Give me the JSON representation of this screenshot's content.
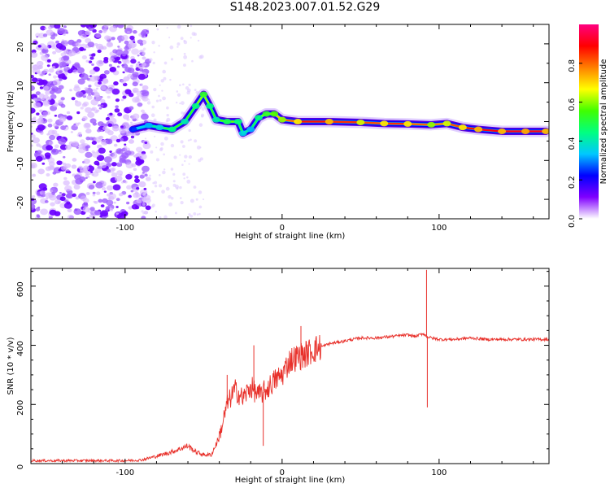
{
  "page": {
    "title": "S148.2023.007.01.52.G29"
  },
  "chart_data": [
    {
      "type": "heatmap",
      "title": "S148.2023.007.01.52.G29",
      "xlabel": "Height of straight line (km)",
      "ylabel": "Frequency (Hz)",
      "xlim": [
        -160,
        170
      ],
      "ylim": [
        -25,
        25
      ],
      "x_ticks": [
        -100,
        0,
        100
      ],
      "y_ticks": [
        -20,
        -10,
        0,
        10,
        20
      ],
      "colorbar": {
        "label": "Normalized spectral amplitude",
        "range": [
          0,
          1
        ],
        "ticks": [
          "0.0",
          "0.2",
          "0.4",
          "0.6",
          "0.8"
        ],
        "colors": [
          "#ffffff",
          "#8000ff",
          "#0000ff",
          "#00c8ff",
          "#00ff80",
          "#40ff00",
          "#ffff00",
          "#ff8000",
          "#ff0000",
          "#ff0080"
        ]
      },
      "ridge": [
        {
          "x": -95,
          "y": -2,
          "a": 0.3
        },
        {
          "x": -85,
          "y": -1,
          "a": 0.4
        },
        {
          "x": -78,
          "y": -1.5,
          "a": 0.45
        },
        {
          "x": -70,
          "y": -2,
          "a": 0.55
        },
        {
          "x": -62,
          "y": 0,
          "a": 0.5
        },
        {
          "x": -55,
          "y": 4,
          "a": 0.55
        },
        {
          "x": -50,
          "y": 7,
          "a": 0.65
        },
        {
          "x": -46,
          "y": 4,
          "a": 0.55
        },
        {
          "x": -42,
          "y": 0.5,
          "a": 0.5
        },
        {
          "x": -35,
          "y": 0,
          "a": 0.6
        },
        {
          "x": -28,
          "y": 0,
          "a": 0.55
        },
        {
          "x": -25,
          "y": -3,
          "a": 0.45
        },
        {
          "x": -20,
          "y": -2,
          "a": 0.4
        },
        {
          "x": -15,
          "y": 1,
          "a": 0.55
        },
        {
          "x": -10,
          "y": 2,
          "a": 0.65
        },
        {
          "x": -5,
          "y": 2,
          "a": 0.7
        },
        {
          "x": 0,
          "y": 0.5,
          "a": 0.75
        },
        {
          "x": 10,
          "y": 0,
          "a": 0.85
        },
        {
          "x": 30,
          "y": 0,
          "a": 0.9
        },
        {
          "x": 50,
          "y": -0.2,
          "a": 0.8
        },
        {
          "x": 65,
          "y": -0.5,
          "a": 0.85
        },
        {
          "x": 80,
          "y": -0.6,
          "a": 0.85
        },
        {
          "x": 95,
          "y": -0.8,
          "a": 0.75
        },
        {
          "x": 105,
          "y": -0.5,
          "a": 0.8
        },
        {
          "x": 115,
          "y": -1.5,
          "a": 0.85
        },
        {
          "x": 125,
          "y": -2,
          "a": 0.9
        },
        {
          "x": 140,
          "y": -2.5,
          "a": 0.9
        },
        {
          "x": 155,
          "y": -2.5,
          "a": 0.92
        },
        {
          "x": 168,
          "y": -2.5,
          "a": 0.9
        }
      ]
    },
    {
      "type": "line",
      "xlabel": "Height of straight line (km)",
      "ylabel": "SNR (10 * v/v)",
      "xlim": [
        -160,
        170
      ],
      "ylim": [
        0,
        660
      ],
      "x_ticks": [
        -100,
        0,
        100
      ],
      "y_ticks": [
        0,
        200,
        400,
        600
      ],
      "color": "#e8302a",
      "x": [
        -160,
        -140,
        -120,
        -100,
        -90,
        -80,
        -70,
        -60,
        -55,
        -50,
        -45,
        -40,
        -35,
        -30,
        -25,
        -20,
        -15,
        -10,
        -5,
        0,
        5,
        10,
        15,
        20,
        25,
        30,
        40,
        50,
        60,
        70,
        80,
        85,
        90,
        92,
        95,
        100,
        110,
        120,
        130,
        140,
        150,
        160,
        170
      ],
      "y": [
        10,
        10,
        10,
        10,
        12,
        25,
        40,
        60,
        40,
        30,
        30,
        90,
        200,
        250,
        220,
        260,
        230,
        250,
        280,
        300,
        350,
        360,
        370,
        385,
        395,
        405,
        415,
        425,
        425,
        430,
        435,
        430,
        440,
        430,
        425,
        420,
        420,
        425,
        420,
        420,
        420,
        420,
        420
      ],
      "spikes": [
        {
          "x": -35,
          "y": 300
        },
        {
          "x": -18,
          "y": 400
        },
        {
          "x": -12,
          "y": 60
        },
        {
          "x": 12,
          "y": 465
        },
        {
          "x": 92,
          "y": 655
        },
        {
          "x": 92.5,
          "y": 190
        }
      ]
    }
  ]
}
